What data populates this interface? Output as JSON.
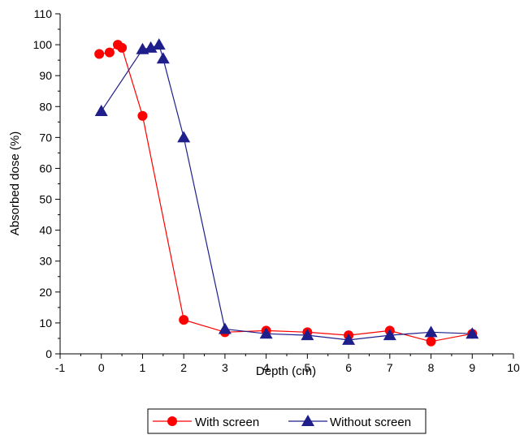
{
  "chart_data": {
    "type": "line",
    "title": "",
    "xlabel": "Depth (cm)",
    "ylabel": "Absorbed dose (%)",
    "xlim": [
      -1,
      10
    ],
    "ylim": [
      0,
      110
    ],
    "x_ticks": [
      "-1",
      "0",
      "1",
      "2",
      "3",
      "4",
      "5",
      "6",
      "7",
      "8",
      "9",
      "10"
    ],
    "y_ticks": [
      "0",
      "10",
      "20",
      "30",
      "40",
      "50",
      "60",
      "70",
      "80",
      "90",
      "100",
      "110"
    ],
    "grid": false,
    "legend_position": "bottom-center",
    "series": [
      {
        "name": "With screen",
        "color": "#ff0000",
        "marker": "circle",
        "x": [
          -0.05,
          0.2,
          0.4,
          0.5,
          1.0,
          2.0,
          3.0,
          4.0,
          5.0,
          6.0,
          7.0,
          8.0,
          9.0
        ],
        "y": [
          97,
          97.5,
          100,
          99,
          77,
          11,
          7,
          7.5,
          7,
          6,
          7.5,
          4,
          6.5
        ]
      },
      {
        "name": "Without screen",
        "color": "#1f1f8c",
        "marker": "triangle",
        "x": [
          0.0,
          1.0,
          1.2,
          1.4,
          1.5,
          2.0,
          3.0,
          4.0,
          5.0,
          6.0,
          7.0,
          8.0,
          9.0
        ],
        "y": [
          78.5,
          98.5,
          99,
          100,
          95.5,
          70,
          8,
          6.5,
          6,
          4.5,
          6,
          7,
          6.5
        ]
      }
    ]
  }
}
